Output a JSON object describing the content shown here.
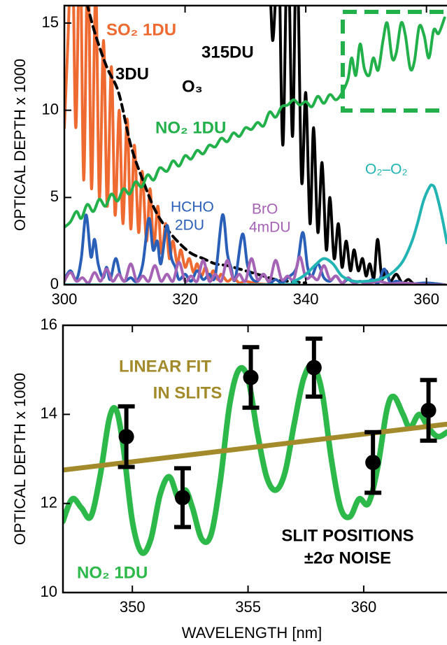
{
  "chart_data": [
    {
      "type": "line",
      "ylabel": "OPTICAL DEPTH x 1000",
      "xlim": [
        300,
        363.4
      ],
      "ylim": [
        0,
        16
      ],
      "xticks": [
        300,
        320,
        340,
        360
      ],
      "yticks": [
        0,
        5,
        10,
        15
      ],
      "annotations": [
        "SO₂ 1DU",
        "3DU",
        "315DU",
        "O₃",
        "NO₂ 1DU",
        "HCHO",
        "2DU",
        "BrO",
        "4mDU",
        "O₂–O₂"
      ],
      "series": [
        {
          "color": "#ef6a30",
          "x": [
            300,
            300.6,
            301.3,
            301.9,
            302.6,
            303.2,
            303.9,
            304.5,
            305.2,
            305.8,
            306.5,
            307.1,
            307.8,
            308.4,
            309.1,
            309.7,
            310.4,
            311,
            311.6,
            312.3,
            312.9,
            313.6,
            314.2,
            314.8,
            315.5,
            316.1,
            316.8,
            317.4,
            318,
            318.7,
            319.3,
            320,
            320.7,
            321.4,
            322,
            322.7,
            323.4,
            324,
            324.7,
            325.4,
            326,
            327,
            328,
            329,
            330,
            332,
            335
          ],
          "values": [
            9,
            14,
            20,
            9,
            20,
            6,
            19,
            5.5,
            17,
            5,
            14,
            4.5,
            12.5,
            4,
            10,
            3.5,
            9.5,
            3.2,
            8,
            3,
            6.5,
            2.5,
            5.5,
            2.2,
            4.5,
            1.8,
            3.5,
            1.5,
            2.5,
            1.2,
            2,
            1,
            1.5,
            0.7,
            1.2,
            0.5,
            1,
            0.4,
            0.8,
            0.3,
            0.6,
            0.2,
            0.4,
            0.1,
            0.2,
            0.05,
            0
          ]
        },
        {
          "color": "#000000",
          "dash": true,
          "x": [
            300,
            303,
            305,
            307,
            309,
            311,
            313,
            315,
            317,
            319,
            321,
            323,
            325,
            327,
            329,
            331,
            333,
            335,
            337,
            340
          ],
          "values": [
            20,
            17,
            14.5,
            12.5,
            11,
            8,
            6,
            4.3,
            3.2,
            2.4,
            1.8,
            1.5,
            1.2,
            1.1,
            0.9,
            0.7,
            0.5,
            0.3,
            0.2,
            0.1
          ]
        },
        {
          "color": "#000000",
          "x": [
            332.5,
            333,
            334,
            334.5,
            335,
            335.5,
            336.2,
            337,
            337.8,
            338.5,
            339.3,
            340,
            340.7,
            341.3,
            342,
            342.7,
            343.4,
            344,
            344.7,
            345.4,
            346,
            346.7,
            347.4,
            348,
            348.7,
            349.4,
            350,
            350.6,
            351.3,
            351.9,
            352.6,
            353.3,
            354,
            355,
            356,
            357,
            358,
            360,
            363
          ],
          "values": [
            17,
            16.5,
            17,
            14,
            16.5,
            20,
            8,
            20,
            8.5,
            20,
            6,
            11,
            3.5,
            9,
            3,
            7,
            2,
            5,
            1.5,
            3.5,
            1,
            2.5,
            0.8,
            2,
            0.8,
            1.5,
            0.5,
            1.2,
            0.4,
            2.6,
            0.4,
            0.8,
            0.2,
            0.6,
            0.1,
            0.3,
            0.05,
            0.1,
            0
          ]
        },
        {
          "color": "#22b04a",
          "x": [
            300,
            301,
            302,
            302.8,
            303.8,
            304.8,
            305.8,
            306.8,
            307.8,
            308.8,
            309.8,
            310.8,
            311.8,
            312.8,
            313.8,
            314.8,
            315.8,
            317,
            318,
            319,
            320,
            321,
            322,
            323,
            324,
            325,
            326,
            327,
            328,
            329,
            330,
            331,
            332,
            333,
            334,
            335,
            336,
            337,
            338,
            339,
            340,
            341,
            342,
            343,
            344,
            345,
            346,
            347,
            347.6,
            348.3,
            349,
            349.7,
            350.5,
            351.2,
            352,
            352.8,
            353.5,
            354.3,
            355,
            355.8,
            356.5,
            357.3,
            358,
            358.8,
            359.6,
            360.4,
            361.2,
            362,
            363
          ],
          "values": [
            3.3,
            3.6,
            4.2,
            3.8,
            4.6,
            4.2,
            4.9,
            4.5,
            5.2,
            4.8,
            5.5,
            5.2,
            5.9,
            5.6,
            6.3,
            6,
            6.7,
            6.5,
            7.1,
            6.8,
            7.4,
            7.2,
            7.7,
            7.5,
            8,
            7.9,
            8.4,
            8.2,
            8.7,
            8.5,
            9,
            8.9,
            9.3,
            9.1,
            9.9,
            9.6,
            10.2,
            10.3,
            10.6,
            10.3,
            10.5,
            10.2,
            10.8,
            10.4,
            10.9,
            10.6,
            11,
            11.8,
            13,
            12,
            13.8,
            12.4,
            12,
            13,
            12.3,
            14,
            15,
            13,
            13.3,
            15,
            14.3,
            12.4,
            12.8,
            14.8,
            14.3,
            13,
            14.6,
            14.4,
            15.3
          ]
        },
        {
          "color": "#2a5fb8",
          "x": [
            300,
            301,
            302,
            302.8,
            303.6,
            304.4,
            305,
            305.6,
            306.4,
            307,
            307.6,
            308.5,
            309.3,
            310,
            311,
            312,
            313,
            314,
            314.7,
            315.4,
            316,
            317,
            317.7,
            318.4,
            319,
            320,
            321,
            322,
            323,
            324,
            325,
            326.2,
            327,
            327.6,
            328.3,
            329.5,
            330.3,
            331,
            332,
            333,
            334,
            335,
            336,
            337,
            338.5,
            339.5,
            340.3,
            341,
            342,
            343,
            344,
            345,
            346,
            347,
            348,
            349,
            350,
            351,
            352,
            353,
            354,
            355,
            357,
            360,
            363
          ],
          "values": [
            0.3,
            0.8,
            0.3,
            1.5,
            4,
            1.6,
            2.6,
            1.2,
            0.4,
            1,
            0.3,
            1.5,
            0.5,
            0.2,
            0.4,
            0.2,
            1.2,
            3.8,
            2,
            2.5,
            1.2,
            3.4,
            1.6,
            1,
            0.3,
            0.6,
            0.2,
            0.8,
            0.3,
            0.6,
            0.5,
            4,
            1.8,
            1,
            0.3,
            2.9,
            1.2,
            0.4,
            0.2,
            0.6,
            0.1,
            0.3,
            0.1,
            0.4,
            1,
            3,
            1,
            0.5,
            1.2,
            0.4,
            0.2,
            0.5,
            0.1,
            0.3,
            0.1,
            0.2,
            0.1,
            0.3,
            0.1,
            0.9,
            0.1,
            0.2,
            0.05,
            0.1,
            0
          ]
        },
        {
          "color": "#a563b5",
          "x": [
            300,
            301,
            302,
            303,
            304,
            305,
            306,
            307,
            308,
            309,
            310,
            311,
            312,
            313,
            314,
            315,
            316,
            317,
            318,
            319,
            320,
            321,
            322,
            323,
            324,
            325,
            326,
            327,
            328,
            329,
            330,
            331,
            332,
            333,
            334,
            335,
            336,
            337,
            338,
            339,
            340,
            341,
            342,
            343,
            344,
            345,
            346,
            347,
            348,
            349,
            350,
            352,
            354,
            356,
            360,
            363
          ],
          "values": [
            0.2,
            0.7,
            0.2,
            0.4,
            0.1,
            0.7,
            0.2,
            0.9,
            0.2,
            0.6,
            0.2,
            1.2,
            0.2,
            0.5,
            0.2,
            1.1,
            0.2,
            0.6,
            0.2,
            1.3,
            0.2,
            0.5,
            0.2,
            1.4,
            0.2,
            0.6,
            0.2,
            1.4,
            0.3,
            0.6,
            0.2,
            1.5,
            0.3,
            0.6,
            0.2,
            1.4,
            0.3,
            0.5,
            0.3,
            1.6,
            0.4,
            0.5,
            0.3,
            1.1,
            0.3,
            0.5,
            0.1,
            0.4,
            0.1,
            0.2,
            0.05,
            0.2,
            0.05,
            0.1,
            0,
            0
          ]
        },
        {
          "color": "#22b3b3",
          "x": [
            300,
            335,
            338,
            340,
            341.5,
            343,
            344.5,
            346,
            348,
            350,
            352,
            354,
            356,
            357.5,
            358.5,
            359.5,
            360.5,
            361,
            361.5,
            362.5,
            363.4
          ],
          "values": [
            0,
            0,
            0.2,
            0.6,
            1.1,
            1.5,
            1.2,
            0.5,
            0.2,
            0.2,
            0.3,
            0.6,
            1.3,
            2.4,
            3.5,
            4.8,
            5.6,
            5.7,
            5.4,
            4,
            2.4
          ]
        }
      ]
    },
    {
      "type": "line",
      "ylabel": "OPTICAL DEPTH x 1000",
      "xlabel": "WAVELENGTH [nm]",
      "xlim": [
        347,
        363.6
      ],
      "ylim": [
        10,
        16
      ],
      "xticks": [
        350,
        355,
        360
      ],
      "yticks": [
        10,
        12,
        14,
        16
      ],
      "annotations": [
        "LINEAR FIT",
        "IN SLITS",
        "SLIT POSITIONS",
        "±2σ NOISE",
        "NO₂ 1DU"
      ],
      "series": [
        {
          "color": "#2db84a",
          "width": 8,
          "x": [
            347,
            347.4,
            347.8,
            348.2,
            348.6,
            349,
            349.3,
            349.6,
            350,
            350.4,
            350.8,
            351.2,
            351.6,
            352,
            352.3,
            352.6,
            353,
            353.4,
            353.8,
            354.2,
            354.6,
            355,
            355.4,
            355.8,
            356.2,
            356.6,
            357,
            357.4,
            357.8,
            358.2,
            358.6,
            359,
            359.4,
            359.8,
            360.2,
            360.6,
            361,
            361.3,
            361.7,
            362,
            362.4,
            362.8,
            363.2,
            363.6
          ],
          "values": [
            11.6,
            12.1,
            11.9,
            11.7,
            12.6,
            13.9,
            14.1,
            13.3,
            11.6,
            10.9,
            11.2,
            12.2,
            12.6,
            12.1,
            12.3,
            11.9,
            11.2,
            11.3,
            12.5,
            14.2,
            15,
            14.8,
            13.6,
            12.6,
            12.3,
            12.7,
            13.8,
            14.8,
            15.1,
            14.5,
            13,
            11.9,
            11.7,
            12.1,
            12,
            12.8,
            14.1,
            14.4,
            14,
            13.7,
            14,
            13.7,
            13.5,
            13.6
          ]
        },
        {
          "color": "#a38b2c",
          "width": 7,
          "x": [
            347,
            363.6
          ],
          "values": [
            12.75,
            13.78
          ]
        },
        {
          "type": "errorbar",
          "color": "#000000",
          "x": [
            349.74,
            352.17,
            355.12,
            357.85,
            360.4,
            362.8
          ],
          "values": [
            13.5,
            12.13,
            14.83,
            15.05,
            12.92,
            14.09
          ],
          "errors": [
            0.68,
            0.66,
            0.68,
            0.65,
            0.68,
            0.68
          ]
        }
      ]
    }
  ]
}
